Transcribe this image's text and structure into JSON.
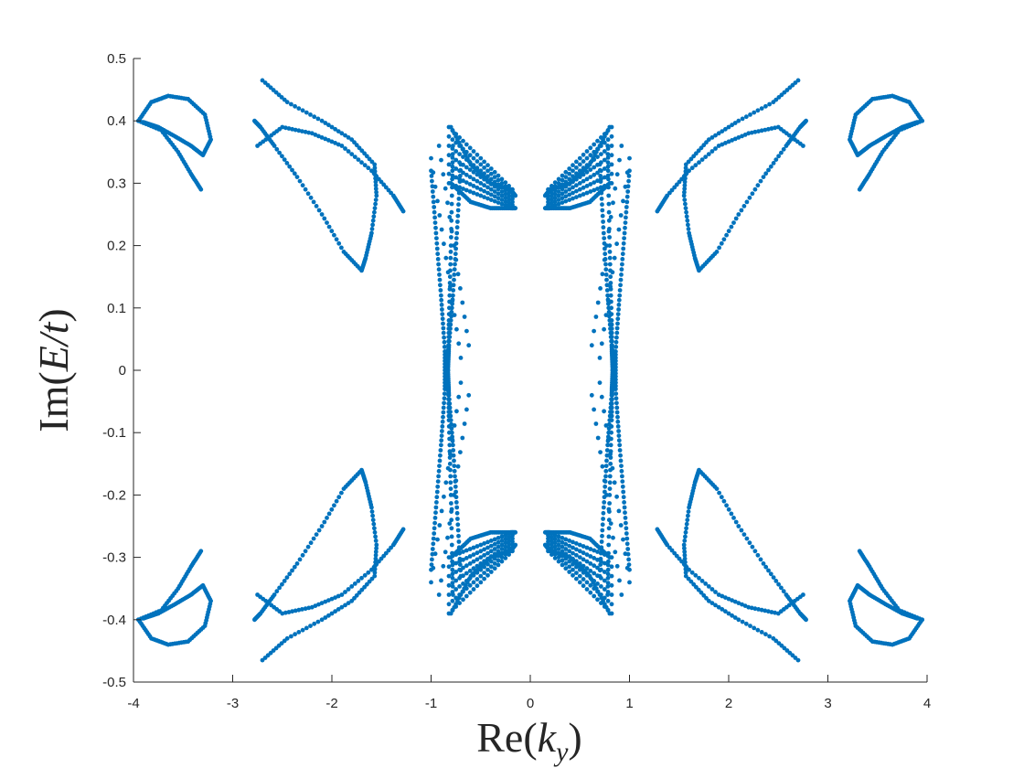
{
  "chart_data": {
    "type": "scatter",
    "xlabel": "Re(k_y)",
    "ylabel": "Im(E/t)",
    "xlim": [
      -4,
      4
    ],
    "ylim": [
      -0.5,
      0.5
    ],
    "xticks": [
      "-4",
      "-3",
      "-2",
      "-1",
      "0",
      "1",
      "2",
      "3",
      "4"
    ],
    "yticks": [
      "-0.5",
      "-0.4",
      "-0.3",
      "-0.2",
      "-0.1",
      "0",
      "0.1",
      "0.2",
      "0.3",
      "0.4",
      "0.5"
    ],
    "grid": false,
    "marker_color": "#0072BD",
    "series": [
      {
        "symmetry": "mirrored in x and y",
        "outer_loops": [
          [
            [
              -3.95,
              0.4
            ],
            [
              -3.82,
              0.43
            ],
            [
              -3.65,
              0.44
            ],
            [
              -3.45,
              0.435
            ],
            [
              -3.28,
              0.41
            ],
            [
              -3.22,
              0.37
            ],
            [
              -3.3,
              0.345
            ],
            [
              -3.42,
              0.36
            ],
            [
              -3.58,
              0.375
            ],
            [
              -3.75,
              0.39
            ],
            [
              -3.9,
              0.398
            ]
          ],
          [
            [
              -3.95,
              0.4
            ],
            [
              -3.72,
              0.385
            ],
            [
              -3.55,
              0.35
            ],
            [
              -3.42,
              0.315
            ],
            [
              -3.32,
              0.29
            ]
          ],
          [
            [
              -2.7,
              0.465
            ],
            [
              -2.45,
              0.43
            ],
            [
              -2.1,
              0.4
            ],
            [
              -1.8,
              0.37
            ],
            [
              -1.57,
              0.33
            ],
            [
              -1.55,
              0.28
            ],
            [
              -1.6,
              0.22
            ],
            [
              -1.66,
              0.18
            ],
            [
              -1.7,
              0.16
            ],
            [
              -1.88,
              0.19
            ],
            [
              -2.1,
              0.25
            ],
            [
              -2.35,
              0.31
            ],
            [
              -2.58,
              0.36
            ],
            [
              -2.72,
              0.39
            ],
            [
              -2.78,
              0.4
            ]
          ],
          [
            [
              -2.75,
              0.36
            ],
            [
              -2.5,
              0.39
            ],
            [
              -2.2,
              0.38
            ],
            [
              -1.9,
              0.36
            ],
            [
              -1.6,
              0.32
            ],
            [
              -1.38,
              0.28
            ],
            [
              -1.28,
              0.255
            ]
          ]
        ],
        "inner_bands": [
          [
            [
              -0.8,
              0.39
            ],
            [
              -0.6,
              0.33
            ],
            [
              -0.4,
              0.3
            ],
            [
              -0.2,
              0.29
            ],
            [
              -0.15,
              0.28
            ]
          ],
          [
            [
              -0.8,
              0.3
            ],
            [
              -0.6,
              0.27
            ],
            [
              -0.4,
              0.26
            ],
            [
              -0.2,
              0.26
            ],
            [
              -0.15,
              0.26
            ]
          ],
          [
            [
              -1.0,
              0.32
            ],
            [
              -0.95,
              0.22
            ],
            [
              -0.9,
              0.12
            ],
            [
              -0.86,
              0.03
            ],
            [
              -0.86,
              -0.03
            ]
          ],
          [
            [
              -0.78,
              0.36
            ],
            [
              -0.8,
              0.2
            ],
            [
              -0.82,
              0.08
            ],
            [
              -0.83,
              0.0
            ]
          ],
          [
            [
              -0.7,
              0.33
            ],
            [
              -0.74,
              0.22
            ],
            [
              -0.78,
              0.12
            ],
            [
              -0.82,
              0.04
            ],
            [
              -0.83,
              0.0
            ]
          ]
        ]
      }
    ]
  }
}
